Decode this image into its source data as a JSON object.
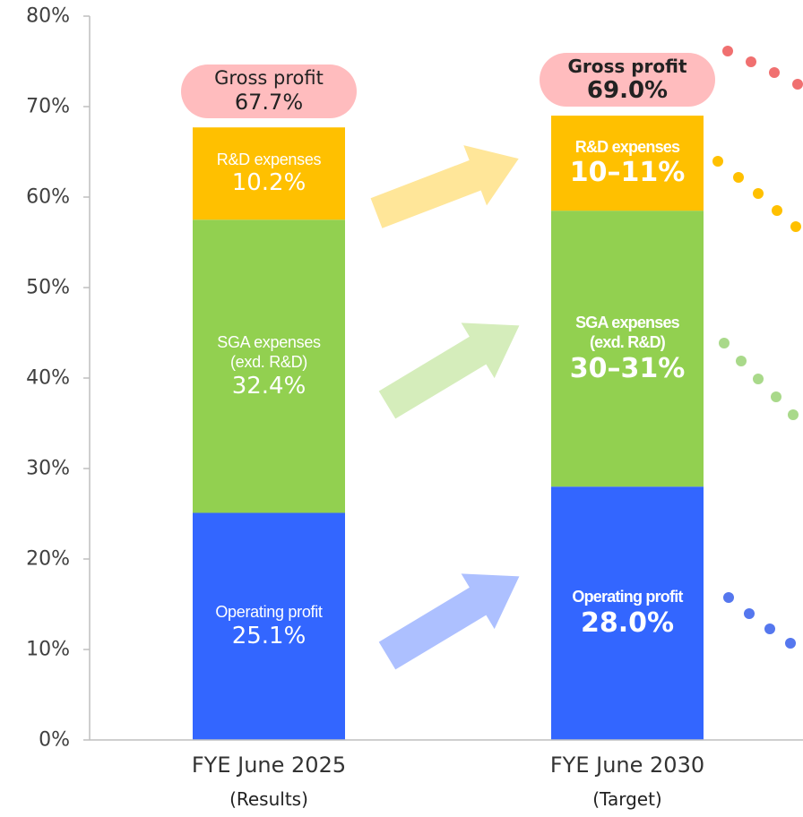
{
  "chart_data": {
    "type": "stacked_bar",
    "categories": [
      "FYE June 2025",
      "FYE June 2030"
    ],
    "category_notes": [
      "(Results)",
      "(Target)"
    ],
    "series": [
      {
        "name": "Operating profit",
        "color": "#3366ff",
        "values": [
          25.1,
          28.0
        ],
        "value_labels": [
          "25.1%",
          "28.0%"
        ]
      },
      {
        "name": "SGA expenses (exd. R&D)",
        "color": "#92d050",
        "values": [
          32.4,
          30.5
        ],
        "value_labels": [
          "32.4%",
          "30–31%"
        ]
      },
      {
        "name": "R&D expenses",
        "color": "#ffc000",
        "values": [
          10.2,
          10.5
        ],
        "value_labels": [
          "10.2%",
          "10–11%"
        ]
      }
    ],
    "totals": {
      "name": "Gross profit",
      "color": "#ffbcbe",
      "values": [
        67.7,
        69.0
      ],
      "value_labels": [
        "67.7%",
        "69.0%"
      ]
    },
    "ylim": [
      0,
      80
    ],
    "yticks": [
      {
        "value": 0,
        "label": "0%"
      },
      {
        "value": 10,
        "label": "10%"
      },
      {
        "value": 20,
        "label": "20%"
      },
      {
        "value": 30,
        "label": "30%"
      },
      {
        "value": 40,
        "label": "40%"
      },
      {
        "value": 50,
        "label": "50%"
      },
      {
        "value": 60,
        "label": "60%"
      },
      {
        "value": 70,
        "label": "70%"
      },
      {
        "value": 80,
        "label": "80%"
      }
    ]
  }
}
